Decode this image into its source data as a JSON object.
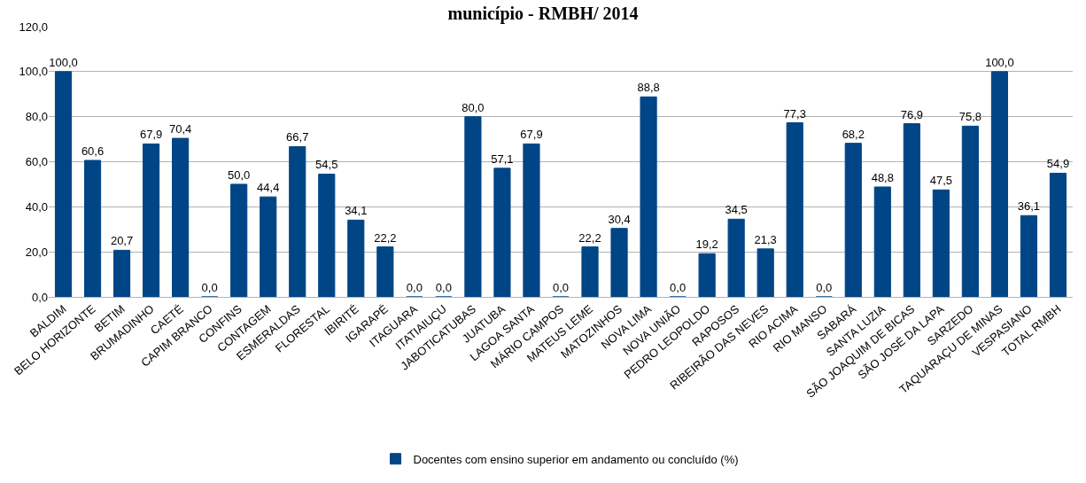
{
  "chart_data": {
    "type": "bar",
    "title": "município - RMBH/ 2014",
    "categories": [
      "BALDIM",
      "BELO HORIZONTE",
      "BETIM",
      "BRUMADINHO",
      "CAETÉ",
      "CAPIM BRANCO",
      "CONFINS",
      "CONTAGEM",
      "ESMERALDAS",
      "FLORESTAL",
      "IBIRITÉ",
      "IGARAPÉ",
      "ITAGUARA",
      "ITATIAIUÇU",
      "JABOTICATUBAS",
      "JUATUBA",
      "LAGOA SANTA",
      "MÁRIO CAMPOS",
      "MATEUS LEME",
      "MATOZINHOS",
      "NOVA LIMA",
      "NOVA UNIÃO",
      "PEDRO LEOPOLDO",
      "RAPOSOS",
      "RIBEIRÃO DAS NEVES",
      "RIO ACIMA",
      "RIO MANSO",
      "SABARÁ",
      "SANTA LUZIA",
      "SÃO JOAQUIM DE BICAS",
      "SÃO JOSÉ DA LAPA",
      "SARZEDO",
      "TAQUARAÇU DE MINAS",
      "VESPASIANO",
      "TOTAL RMBH"
    ],
    "series": [
      {
        "name": "Docentes com ensino superior em andamento ou concluído (%)",
        "color": "#004586",
        "values": [
          100.0,
          60.6,
          20.7,
          67.9,
          70.4,
          0.0,
          50.0,
          44.4,
          66.7,
          54.5,
          34.1,
          22.2,
          0.0,
          0.0,
          80.0,
          57.1,
          67.9,
          0.0,
          22.2,
          30.4,
          88.8,
          0.0,
          19.2,
          34.5,
          21.3,
          77.3,
          0.0,
          68.2,
          48.8,
          76.9,
          47.5,
          75.8,
          100.0,
          36.1,
          54.9
        ],
        "value_labels": [
          "100,0",
          "60,6",
          "20,7",
          "67,9",
          "70,4",
          "0,0",
          "50,0",
          "44,4",
          "66,7",
          "54,5",
          "34,1",
          "22,2",
          "0,0",
          "0,0",
          "80,0",
          "57,1",
          "67,9",
          "0,0",
          "22,2",
          "30,4",
          "88,8",
          "0,0",
          "19,2",
          "34,5",
          "21,3",
          "77,3",
          "0,0",
          "68,2",
          "48,8",
          "76,9",
          "47,5",
          "75,8",
          "100,0",
          "36,1",
          "54,9"
        ]
      }
    ],
    "ylim": [
      0,
      120
    ],
    "yticks": [
      {
        "value": 0,
        "label": "0,0"
      },
      {
        "value": 20,
        "label": "20,0"
      },
      {
        "value": 40,
        "label": "40,0"
      },
      {
        "value": 60,
        "label": "60,0"
      },
      {
        "value": 80,
        "label": "80,0"
      },
      {
        "value": 100,
        "label": "100,0"
      },
      {
        "value": 120,
        "label": "120,0"
      }
    ],
    "grid": "y",
    "legend": "bottom"
  }
}
